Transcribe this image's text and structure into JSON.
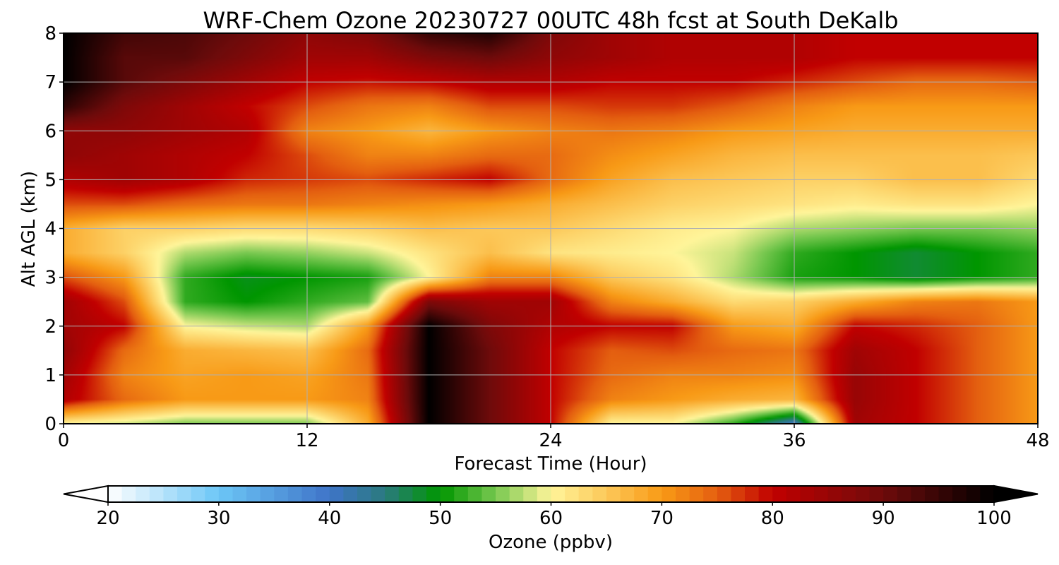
{
  "chart_data": {
    "type": "heatmap",
    "title": "WRF-Chem Ozone  20230727 00UTC 48h fcst at South DeKalb",
    "xlabel": "Forecast Time (Hour)",
    "ylabel": "Alt AGL (km)",
    "xlim": [
      0,
      48
    ],
    "ylim": [
      0,
      8
    ],
    "xticks": [
      0,
      12,
      24,
      36,
      48
    ],
    "yticks": [
      0,
      1,
      2,
      3,
      4,
      5,
      6,
      7,
      8
    ],
    "grid": true,
    "colorbar": {
      "label": "Ozone  (ppbv)",
      "min": 20,
      "max": 100,
      "ticks": [
        20,
        30,
        40,
        50,
        60,
        70,
        80,
        90,
        100
      ],
      "extend": "both",
      "orientation": "horizontal",
      "placement": "bottom"
    },
    "x": [
      0,
      3,
      6,
      9,
      12,
      15,
      18,
      21,
      24,
      27,
      30,
      33,
      36,
      39,
      42,
      45,
      48
    ],
    "y": [
      0,
      0.5,
      1,
      1.5,
      2,
      2.5,
      3,
      3.5,
      4,
      4.5,
      5,
      5.5,
      6,
      6.5,
      7,
      7.5,
      8
    ],
    "z": [
      [
        60,
        58,
        55,
        55,
        55,
        68,
        100,
        90,
        80,
        60,
        60,
        52,
        40,
        84,
        80,
        75,
        70
      ],
      [
        82,
        74,
        70,
        70,
        70,
        72,
        100,
        90,
        80,
        72,
        70,
        68,
        67,
        85,
        80,
        75,
        70
      ],
      [
        84,
        72,
        69,
        70,
        69,
        73,
        100,
        90,
        80,
        74,
        72,
        72,
        71,
        85,
        80,
        75,
        70
      ],
      [
        86,
        74,
        68,
        67,
        66,
        74,
        100,
        90,
        80,
        75,
        76,
        74,
        73,
        84,
        80,
        75,
        70
      ],
      [
        84,
        80,
        60,
        58,
        57,
        70,
        100,
        88,
        82,
        80,
        80,
        70,
        68,
        80,
        78,
        75,
        70
      ],
      [
        84,
        76,
        52,
        50,
        52,
        54,
        88,
        84,
        84,
        72,
        68,
        63,
        64,
        68,
        72,
        73,
        70
      ],
      [
        76,
        70,
        52,
        49,
        50,
        51,
        60,
        72,
        72,
        65,
        62,
        57,
        51,
        50,
        48,
        50,
        52
      ],
      [
        68,
        64,
        57,
        55,
        56,
        58,
        62,
        66,
        62,
        61,
        60,
        58,
        52,
        50,
        48,
        50,
        52
      ],
      [
        68,
        64,
        64,
        63,
        63,
        64,
        66,
        65,
        65,
        63,
        61,
        60,
        57,
        56,
        55,
        55,
        56
      ],
      [
        76,
        76,
        74,
        73,
        73,
        72,
        71,
        70,
        68,
        66,
        64,
        63,
        62,
        61,
        62,
        62,
        60
      ],
      [
        82,
        84,
        82,
        78,
        77,
        76,
        78,
        80,
        74,
        69,
        66,
        65,
        64,
        64,
        66,
        66,
        63
      ],
      [
        86,
        84,
        82,
        80,
        76,
        72,
        72,
        74,
        74,
        71,
        69,
        67,
        66,
        66,
        66,
        66,
        65
      ],
      [
        86,
        86,
        84,
        82,
        72,
        70,
        67,
        70,
        72,
        73,
        72,
        70,
        69,
        68,
        68,
        68,
        68
      ],
      [
        96,
        88,
        84,
        80,
        76,
        73,
        72,
        76,
        76,
        77,
        77,
        75,
        72,
        70,
        70,
        70,
        70
      ],
      [
        100,
        92,
        88,
        84,
        80,
        79,
        80,
        82,
        82,
        80,
        80,
        80,
        78,
        76,
        74,
        74,
        75
      ],
      [
        100,
        92,
        92,
        88,
        84,
        84,
        88,
        90,
        86,
        84,
        82,
        82,
        82,
        80,
        80,
        80,
        80
      ],
      [
        100,
        94,
        93,
        90,
        86,
        88,
        95,
        97,
        88,
        84,
        82,
        82,
        82,
        80,
        80,
        80,
        80
      ]
    ]
  },
  "colors": {
    "background": "#ffffff",
    "grid": "#b0b0b0",
    "colormap_stops": [
      {
        "v": 20,
        "c": "#ffffff"
      },
      {
        "v": 30,
        "c": "#6cc6f6"
      },
      {
        "v": 40,
        "c": "#3f74c8"
      },
      {
        "v": 45,
        "c": "#2a7a7e"
      },
      {
        "v": 50,
        "c": "#009600"
      },
      {
        "v": 55,
        "c": "#78c850"
      },
      {
        "v": 60,
        "c": "#fff59a"
      },
      {
        "v": 65,
        "c": "#fcc859"
      },
      {
        "v": 70,
        "c": "#f89a16"
      },
      {
        "v": 75,
        "c": "#e45f10"
      },
      {
        "v": 80,
        "c": "#c10000"
      },
      {
        "v": 90,
        "c": "#6e0b0b"
      },
      {
        "v": 100,
        "c": "#000000"
      }
    ]
  }
}
